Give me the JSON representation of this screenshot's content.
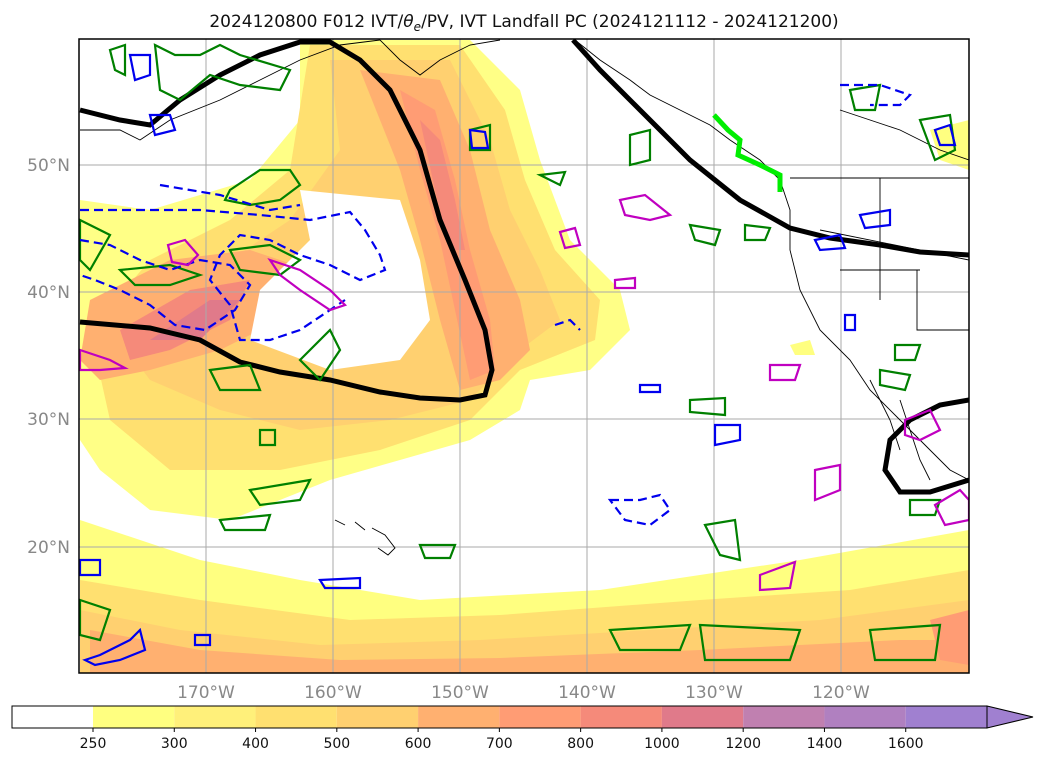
{
  "title": "2024120800 F012 IVT/θe/PV, IVT Landfall PC (2024121112 - 2024121200)",
  "title_parts": {
    "prefix": "2024120800 F012 IVT/",
    "theta": "θ",
    "sub": "e",
    "suffix": "/PV, IVT Landfall PC (2024121112 - 2024121200)"
  },
  "map": {
    "lat_labels": [
      "50°N",
      "40°N",
      "30°N",
      "20°N"
    ],
    "lon_labels": [
      "170°W",
      "160°W",
      "150°W",
      "140°W",
      "130°W",
      "120°W"
    ],
    "lat_values": [
      50,
      40,
      30,
      20
    ],
    "lon_values": [
      -170,
      -160,
      -150,
      -140,
      -130,
      -120
    ],
    "extent": {
      "lon_min": -180,
      "lon_max": -110,
      "lat_min": 10,
      "lat_max": 60
    },
    "grid": true
  },
  "colorbar": {
    "labels": [
      "250",
      "300",
      "400",
      "500",
      "600",
      "700",
      "800",
      "1000",
      "1200",
      "1400",
      "1600"
    ],
    "colors": [
      "#ffffff",
      "#ffff80",
      "#fff07a",
      "#ffe070",
      "#ffd070",
      "#ffb070",
      "#ff9c74",
      "#f58a7a",
      "#e07a8a",
      "#c080b0",
      "#b080c0",
      "#a080d0"
    ],
    "extend": "max"
  },
  "legend_colors": {
    "ivt_fill": "#ffd070",
    "theta_e": "#000000",
    "pv_green": "#008000",
    "pv_blue": "#0000ff",
    "pv_magenta": "#c000c0",
    "landfall": "#00ee00"
  }
}
